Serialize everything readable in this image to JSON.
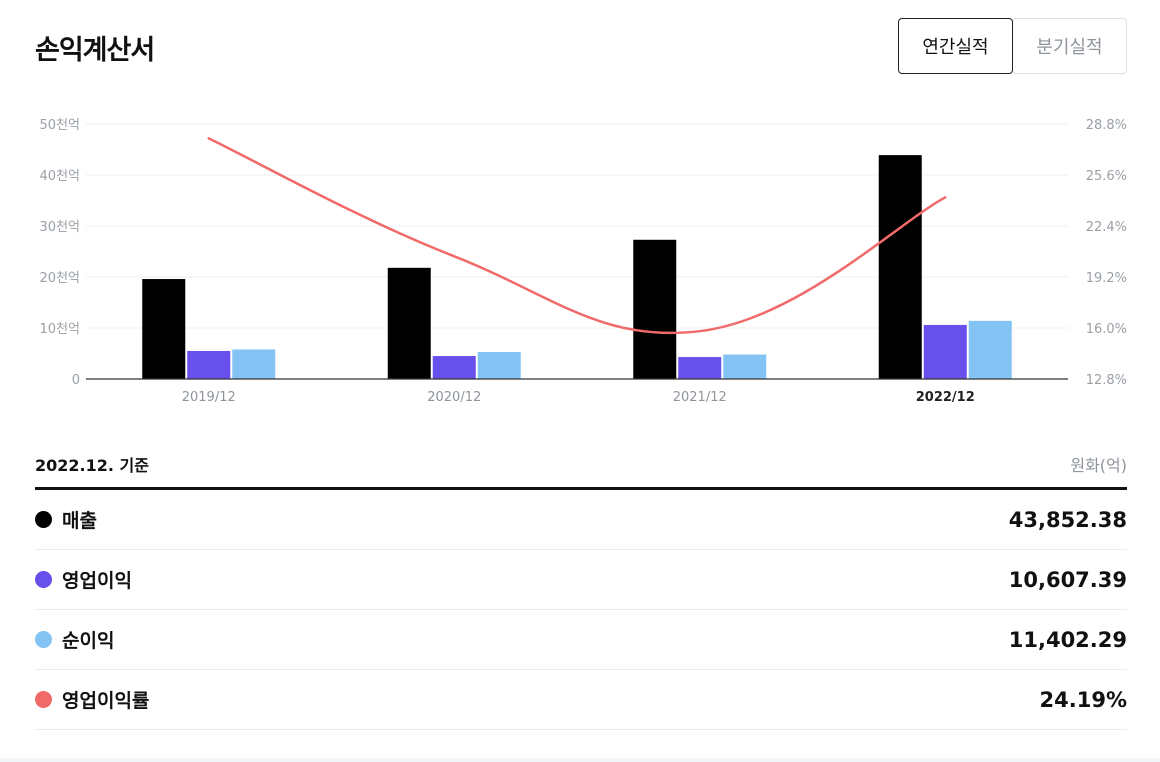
{
  "header": {
    "title": "손익계산서",
    "tab_annual": "연간실적",
    "tab_quarter": "분기실적"
  },
  "chart_data": {
    "type": "bar",
    "categories": [
      "2019/12",
      "2020/12",
      "2021/12",
      "2022/12"
    ],
    "highlighted_category": "2022/12",
    "series": [
      {
        "name": "매출",
        "values": [
          19.6,
          21.8,
          27.3,
          43.9
        ],
        "color": "#000000",
        "type": "bar"
      },
      {
        "name": "영업이익",
        "values": [
          5.5,
          4.5,
          4.3,
          10.6
        ],
        "color": "#6750ec",
        "type": "bar"
      },
      {
        "name": "순이익",
        "values": [
          5.8,
          5.3,
          4.8,
          11.4
        ],
        "color": "#83c4f5",
        "type": "bar"
      },
      {
        "name": "영업이익률",
        "values": [
          27.9,
          20.5,
          15.8,
          24.2
        ],
        "color": "#f06a69",
        "type": "line",
        "axis": "right"
      }
    ],
    "y_left": {
      "ticks": [
        "0",
        "10천억",
        "20천억",
        "30천억",
        "40천억",
        "50천억"
      ],
      "ylim": [
        0,
        50
      ]
    },
    "y_right": {
      "ticks": [
        "12.8%",
        "16.0%",
        "19.2%",
        "22.4%",
        "25.6%",
        "28.8%"
      ],
      "ylim": [
        12.8,
        28.8
      ]
    },
    "grid": true
  },
  "summary": {
    "basis": "2022.12. 기준",
    "unit": "원화(억)",
    "rows": [
      {
        "label": "매출",
        "value": "43,852.38",
        "color": "#000000"
      },
      {
        "label": "영업이익",
        "value": "10,607.39",
        "color": "#6750ec"
      },
      {
        "label": "순이익",
        "value": "11,402.29",
        "color": "#83c4f5"
      },
      {
        "label": "영업이익률",
        "value": "24.19%",
        "color": "#f06a69"
      }
    ]
  }
}
